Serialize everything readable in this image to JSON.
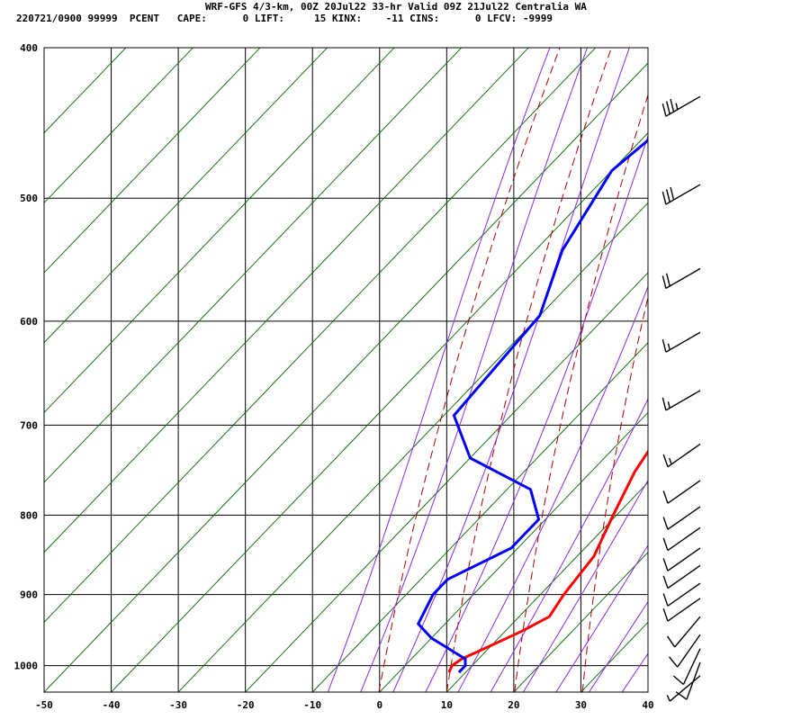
{
  "header": {
    "line1": "WRF-GFS 4/3-km, 00Z 20Jul22 33-hr Valid 09Z 21Jul22 Centralia WA",
    "line2": "220721/0900 99999  PCENT   CAPE:      0 LIFT:     15 KINX:    -11 CINS:      0 LFCV: -9999"
  },
  "chart_data": {
    "type": "line",
    "subtype": "skew-T log-P sounding",
    "title": "WRF-GFS 4/3-km, 00Z 20Jul22 33-hr Valid 09Z 21Jul22 Centralia WA",
    "x_axis": {
      "label": "",
      "range": [
        -50,
        40
      ],
      "ticks": [
        -50,
        -40,
        -30,
        -20,
        -10,
        0,
        10,
        20,
        30,
        40
      ]
    },
    "y_axis": {
      "label": "",
      "scale": "log",
      "range": [
        400,
        1040
      ],
      "ticks": [
        400,
        500,
        600,
        700,
        800,
        900,
        1000
      ]
    },
    "grid": true,
    "series": [
      {
        "color": "#ff0000",
        "points": [
          [
            420,
            -20
          ],
          [
            450,
            -17
          ],
          [
            500,
            -12.5
          ],
          [
            550,
            -8
          ],
          [
            600,
            -3
          ],
          [
            650,
            1
          ],
          [
            690,
            4
          ],
          [
            750,
            6.5
          ],
          [
            800,
            9.5
          ],
          [
            850,
            12.5
          ],
          [
            900,
            13.5
          ],
          [
            930,
            14.5
          ],
          [
            950,
            12.5
          ],
          [
            970,
            10
          ],
          [
            990,
            7.5
          ],
          [
            1000,
            7
          ],
          [
            1010,
            7.5
          ]
        ]
      },
      {
        "color": "#0000ff",
        "points": [
          [
            420,
            -38
          ],
          [
            450,
            -38.5
          ],
          [
            480,
            -40
          ],
          [
            540,
            -36
          ],
          [
            595,
            -30
          ],
          [
            690,
            -28.5
          ],
          [
            735,
            -20
          ],
          [
            770,
            -6.5
          ],
          [
            805,
            -1
          ],
          [
            840,
            -1
          ],
          [
            880,
            -6
          ],
          [
            900,
            -6
          ],
          [
            940,
            -4
          ],
          [
            960,
            0
          ],
          [
            990,
            8
          ],
          [
            1000,
            9
          ],
          [
            1010,
            9
          ]
        ]
      }
    ],
    "dry_adiabat_thetas_K": [
      270,
      280,
      290,
      300,
      310,
      320,
      330,
      340,
      350,
      360
    ],
    "moist_adiabat_thetaw_C": [
      -10,
      -5,
      0,
      5,
      10,
      15,
      20,
      25,
      30,
      35
    ],
    "wind_barbs": [
      {
        "p": 430,
        "dir": 240,
        "spd": 35
      },
      {
        "p": 490,
        "dir": 240,
        "spd": 30
      },
      {
        "p": 555,
        "dir": 240,
        "spd": 20
      },
      {
        "p": 610,
        "dir": 240,
        "spd": 15
      },
      {
        "p": 665,
        "dir": 240,
        "spd": 15
      },
      {
        "p": 720,
        "dir": 235,
        "spd": 15
      },
      {
        "p": 760,
        "dir": 235,
        "spd": 10
      },
      {
        "p": 790,
        "dir": 235,
        "spd": 10
      },
      {
        "p": 815,
        "dir": 235,
        "spd": 10
      },
      {
        "p": 840,
        "dir": 235,
        "spd": 10
      },
      {
        "p": 862,
        "dir": 235,
        "spd": 10
      },
      {
        "p": 885,
        "dir": 235,
        "spd": 10
      },
      {
        "p": 905,
        "dir": 235,
        "spd": 10
      },
      {
        "p": 930,
        "dir": 220,
        "spd": 10
      },
      {
        "p": 955,
        "dir": 215,
        "spd": 10
      },
      {
        "p": 975,
        "dir": 205,
        "spd": 10
      },
      {
        "p": 995,
        "dir": 200,
        "spd": 10
      },
      {
        "p": 1015,
        "dir": 230,
        "spd": 5
      }
    ]
  }
}
